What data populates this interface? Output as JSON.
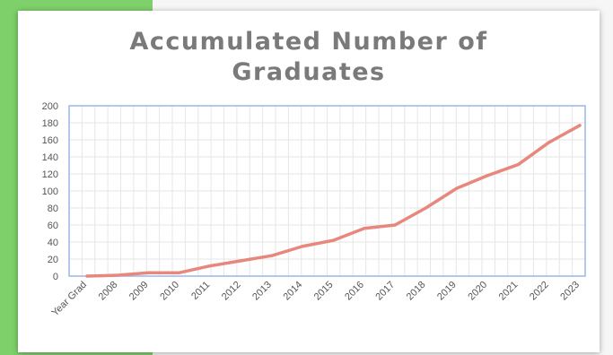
{
  "chart_data": {
    "type": "line",
    "title_lines": [
      "Accumulated Number of",
      "Graduates"
    ],
    "xlabel": "",
    "ylabel": "",
    "categories": [
      "Year Grad",
      "2008",
      "2009",
      "2010",
      "2011",
      "2012",
      "2013",
      "2014",
      "2015",
      "2016",
      "2017",
      "2018",
      "2019",
      "2020",
      "2021",
      "2022",
      "2023"
    ],
    "series": [
      {
        "values": [
          0,
          1,
          4,
          4,
          12,
          18,
          24,
          35,
          42,
          56,
          60,
          80,
          103,
          118,
          131,
          157,
          177
        ],
        "color": "#e8877d"
      }
    ],
    "ylim": [
      0,
      200
    ],
    "yticks": [
      0,
      20,
      40,
      60,
      80,
      100,
      120,
      140,
      160,
      180,
      200
    ],
    "grid": true,
    "legend": "none"
  },
  "colors": {
    "background_accent": "#7ed06a",
    "plot_border": "#9bb6e6",
    "grid": "#e6e6e6",
    "title": "#7a7a7a"
  }
}
